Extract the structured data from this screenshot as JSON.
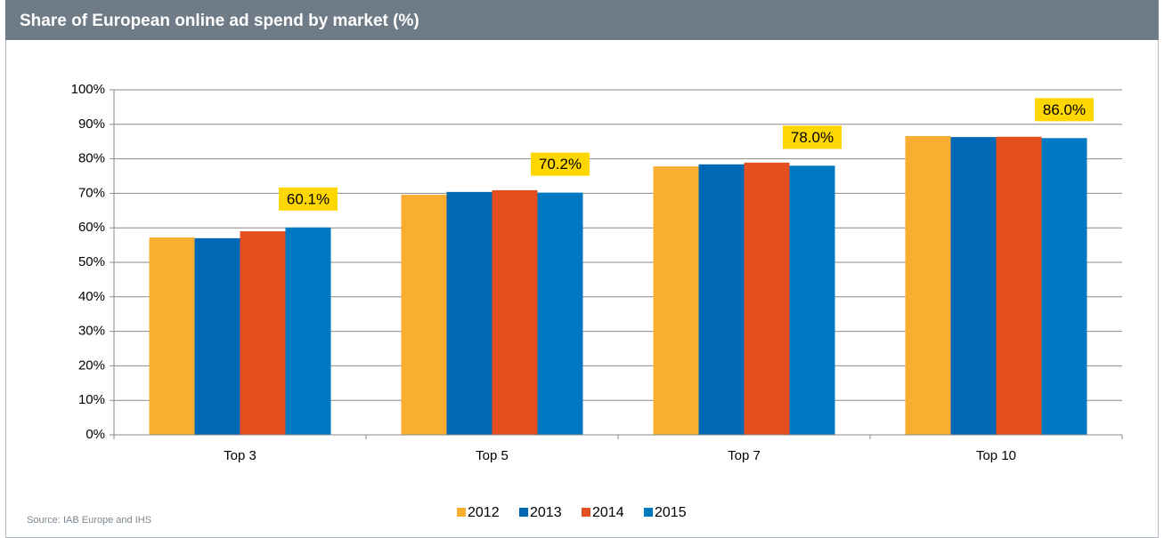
{
  "chart_data": {
    "type": "bar",
    "title": "Share of European online ad spend by market (%)",
    "source": "Source: IAB Europe and IHS",
    "categories": [
      "Top 3",
      "Top 5",
      "Top 7",
      "Top 10"
    ],
    "series": [
      {
        "name": "2012",
        "color": "#f9ae32",
        "values": [
          57.2,
          69.6,
          77.8,
          86.6
        ]
      },
      {
        "name": "2013",
        "color": "#0068b5",
        "values": [
          57.0,
          70.4,
          78.4,
          86.3
        ]
      },
      {
        "name": "2014",
        "color": "#e54e1e",
        "values": [
          59.0,
          70.9,
          78.9,
          86.4
        ]
      },
      {
        "name": "2015",
        "color": "#0079c2",
        "values": [
          60.1,
          70.2,
          78.0,
          86.0
        ],
        "value_labels": [
          "60.1%",
          "70.2%",
          "78.0%",
          "86.0%"
        ]
      }
    ],
    "ylim": [
      0,
      100
    ],
    "yticks": [
      {
        "value": 0,
        "label": "0%"
      },
      {
        "value": 10,
        "label": "10%"
      },
      {
        "value": 20,
        "label": "20%"
      },
      {
        "value": 30,
        "label": "30%"
      },
      {
        "value": 40,
        "label": "40%"
      },
      {
        "value": 50,
        "label": "50%"
      },
      {
        "value": 60,
        "label": "60%"
      },
      {
        "value": 70,
        "label": "70%"
      },
      {
        "value": 80,
        "label": "80%"
      },
      {
        "value": 90,
        "label": "90%"
      },
      {
        "value": 100,
        "label": "100%"
      }
    ],
    "grid": true,
    "legend": "bottom"
  }
}
